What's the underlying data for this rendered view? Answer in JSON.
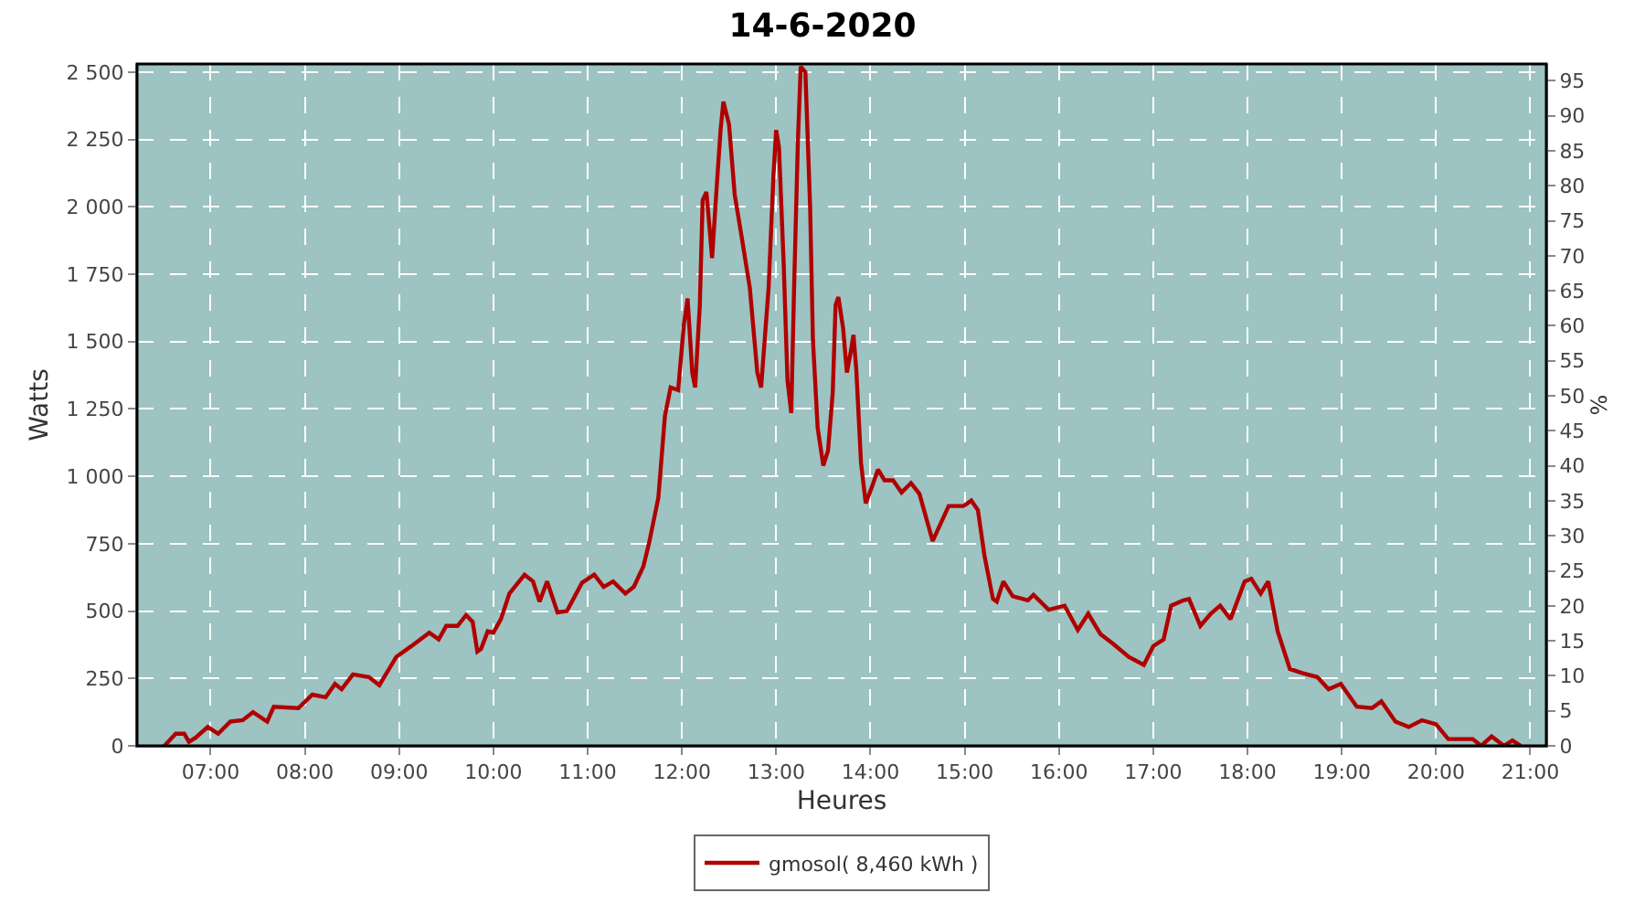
{
  "chart_data": {
    "type": "line",
    "title": "14-6-2020",
    "xlabel": "Heures",
    "ylabel": "Watts",
    "y2label": "%",
    "x": [
      6.51,
      6.63,
      6.72,
      6.77,
      6.84,
      6.97,
      7.08,
      7.21,
      7.34,
      7.45,
      7.6,
      7.67,
      7.93,
      8.08,
      8.22,
      8.32,
      8.39,
      8.51,
      8.68,
      8.79,
      8.97,
      9.13,
      9.32,
      9.42,
      9.5,
      9.62,
      9.71,
      9.78,
      9.83,
      9.87,
      9.94,
      10.0,
      10.08,
      10.17,
      10.33,
      10.42,
      10.49,
      10.57,
      10.68,
      10.78,
      10.94,
      11.07,
      11.17,
      11.27,
      11.4,
      11.49,
      11.59,
      11.65,
      11.75,
      11.82,
      11.88,
      11.96,
      12.02,
      12.06,
      12.11,
      12.14,
      12.19,
      12.22,
      12.26,
      12.29,
      12.32,
      12.37,
      12.41,
      12.44,
      12.5,
      12.56,
      12.64,
      12.72,
      12.8,
      12.84,
      12.92,
      12.97,
      13.0,
      13.03,
      13.08,
      13.12,
      13.16,
      13.19,
      13.23,
      13.26,
      13.31,
      13.36,
      13.39,
      13.44,
      13.5,
      13.55,
      13.6,
      13.63,
      13.66,
      13.71,
      13.75,
      13.79,
      13.82,
      13.85,
      13.9,
      13.95,
      14.02,
      14.08,
      14.15,
      14.24,
      14.33,
      14.43,
      14.52,
      14.66,
      14.83,
      14.99,
      15.07,
      15.14,
      15.21,
      15.3,
      15.34,
      15.41,
      15.51,
      15.62,
      15.67,
      15.73,
      15.89,
      16.06,
      16.2,
      16.31,
      16.44,
      16.57,
      16.74,
      16.9,
      17.0,
      17.11,
      17.19,
      17.32,
      17.38,
      17.5,
      17.61,
      17.71,
      17.82,
      17.97,
      18.04,
      18.14,
      18.22,
      18.32,
      18.45,
      18.58,
      18.74,
      18.86,
      18.99,
      19.16,
      19.32,
      19.42,
      19.57,
      19.71,
      19.85,
      20.0,
      20.13,
      20.39,
      20.48,
      20.59,
      20.72,
      20.81,
      20.9
    ],
    "series": [
      {
        "name": "gmosol( 8,460 kWh )",
        "color": "#b00000",
        "values": [
          0,
          45,
          45,
          15,
          30,
          70,
          45,
          90,
          95,
          125,
          90,
          145,
          140,
          190,
          180,
          230,
          210,
          265,
          255,
          225,
          330,
          370,
          420,
          395,
          445,
          445,
          485,
          460,
          350,
          360,
          425,
          420,
          470,
          565,
          635,
          610,
          535,
          610,
          495,
          500,
          605,
          635,
          590,
          610,
          565,
          590,
          665,
          750,
          920,
          1225,
          1330,
          1320,
          1560,
          1660,
          1385,
          1330,
          1635,
          2025,
          2055,
          1935,
          1810,
          2080,
          2285,
          2390,
          2305,
          2045,
          1875,
          1700,
          1385,
          1330,
          1700,
          2110,
          2285,
          2220,
          1785,
          1355,
          1235,
          1700,
          2240,
          2520,
          2500,
          2000,
          1505,
          1180,
          1040,
          1095,
          1310,
          1635,
          1665,
          1550,
          1385,
          1460,
          1525,
          1395,
          1050,
          900,
          965,
          1025,
          985,
          985,
          940,
          975,
          935,
          760,
          890,
          890,
          910,
          875,
          705,
          545,
          535,
          610,
          555,
          545,
          540,
          560,
          505,
          520,
          430,
          490,
          415,
          380,
          330,
          300,
          370,
          395,
          520,
          540,
          545,
          445,
          490,
          520,
          470,
          610,
          620,
          565,
          610,
          425,
          285,
          270,
          255,
          210,
          230,
          145,
          140,
          165,
          90,
          70,
          95,
          80,
          25,
          25,
          0,
          35,
          0,
          20,
          0
        ]
      }
    ],
    "xlim": [
      6.22,
      21.17
    ],
    "xticks": [
      {
        "value": 7,
        "label": "07:00"
      },
      {
        "value": 8,
        "label": "08:00"
      },
      {
        "value": 9,
        "label": "09:00"
      },
      {
        "value": 10,
        "label": "10:00"
      },
      {
        "value": 11,
        "label": "11:00"
      },
      {
        "value": 12,
        "label": "12:00"
      },
      {
        "value": 13,
        "label": "13:00"
      },
      {
        "value": 14,
        "label": "14:00"
      },
      {
        "value": 15,
        "label": "15:00"
      },
      {
        "value": 16,
        "label": "16:00"
      },
      {
        "value": 17,
        "label": "17:00"
      },
      {
        "value": 18,
        "label": "18:00"
      },
      {
        "value": 19,
        "label": "19:00"
      },
      {
        "value": 20,
        "label": "20:00"
      },
      {
        "value": 21,
        "label": "21:00"
      }
    ],
    "ylim": [
      0,
      2530
    ],
    "yticks": [
      0,
      250,
      500,
      750,
      {
        "value": 1000,
        "label": "1 000"
      },
      {
        "value": 1250,
        "label": "1 250"
      },
      {
        "value": 1500,
        "label": "1 500"
      },
      {
        "value": 1750,
        "label": "1 750"
      },
      {
        "value": 2000,
        "label": "2 000"
      },
      {
        "value": 2250,
        "label": "2 250"
      },
      {
        "value": 2500,
        "label": "2 500"
      }
    ],
    "y2lim": [
      0,
      97.4
    ],
    "y2ticks": [
      0,
      5,
      10,
      15,
      20,
      25,
      30,
      35,
      40,
      45,
      50,
      55,
      60,
      65,
      70,
      75,
      80,
      85,
      90,
      95
    ],
    "grid": true,
    "legend": "bottom",
    "marker": "none",
    "line_style": "solid"
  }
}
